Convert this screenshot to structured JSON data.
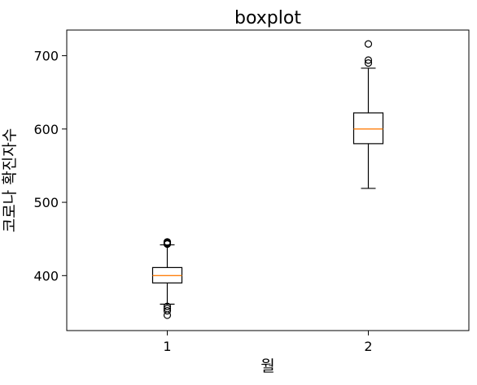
{
  "chart_data": {
    "type": "boxplot",
    "title": "boxplot",
    "xlabel": "월",
    "ylabel": "코로나 확진자수",
    "categories": [
      "1",
      "2"
    ],
    "ylim": [
      325,
      735
    ],
    "yticks": [
      400,
      500,
      600,
      700
    ],
    "grid": false,
    "colors": {
      "box": "#000000",
      "median": "#ff7f0e",
      "whisker": "#000000",
      "outlier": "#000000",
      "axes": "#000000",
      "background": "#ffffff"
    },
    "series": [
      {
        "category": "1",
        "q1": 390,
        "median": 400,
        "q3": 411,
        "whisker_low": 361,
        "whisker_high": 442,
        "outliers": [
          346,
          352,
          355,
          358,
          443,
          444,
          445,
          446
        ]
      },
      {
        "category": "2",
        "q1": 580,
        "median": 600,
        "q3": 622,
        "whisker_low": 519,
        "whisker_high": 683,
        "outliers": [
          690,
          694,
          716
        ]
      }
    ]
  }
}
